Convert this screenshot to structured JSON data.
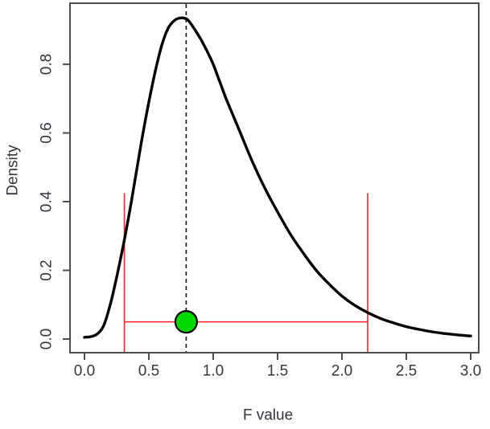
{
  "chart_data": {
    "type": "line",
    "title": "",
    "xlabel": "F value",
    "ylabel": "Density",
    "xlim": [
      0.0,
      3.0
    ],
    "ylim": [
      0.0,
      0.95
    ],
    "grid": false,
    "legend": null,
    "x_ticks": [
      0.0,
      0.5,
      1.0,
      1.5,
      2.0,
      2.5,
      3.0
    ],
    "y_ticks": [
      0.0,
      0.2,
      0.4,
      0.6,
      0.8
    ],
    "series": [
      {
        "name": "f-density-curve",
        "type": "line",
        "color": "#000000",
        "points": [
          [
            0.0,
            0.005
          ],
          [
            0.05,
            0.007
          ],
          [
            0.1,
            0.015
          ],
          [
            0.15,
            0.04
          ],
          [
            0.2,
            0.1
          ],
          [
            0.25,
            0.18
          ],
          [
            0.3,
            0.27
          ],
          [
            0.35,
            0.37
          ],
          [
            0.4,
            0.48
          ],
          [
            0.45,
            0.59
          ],
          [
            0.5,
            0.69
          ],
          [
            0.55,
            0.78
          ],
          [
            0.6,
            0.855
          ],
          [
            0.65,
            0.905
          ],
          [
            0.7,
            0.928
          ],
          [
            0.75,
            0.935
          ],
          [
            0.8,
            0.93
          ],
          [
            0.85,
            0.905
          ],
          [
            0.9,
            0.875
          ],
          [
            0.95,
            0.84
          ],
          [
            1.0,
            0.8
          ],
          [
            1.05,
            0.75
          ],
          [
            1.1,
            0.7
          ],
          [
            1.15,
            0.655
          ],
          [
            1.2,
            0.61
          ],
          [
            1.3,
            0.52
          ],
          [
            1.4,
            0.44
          ],
          [
            1.5,
            0.37
          ],
          [
            1.6,
            0.305
          ],
          [
            1.7,
            0.25
          ],
          [
            1.8,
            0.2
          ],
          [
            1.9,
            0.16
          ],
          [
            2.0,
            0.125
          ],
          [
            2.1,
            0.098
          ],
          [
            2.2,
            0.077
          ],
          [
            2.3,
            0.06
          ],
          [
            2.4,
            0.047
          ],
          [
            2.5,
            0.036
          ],
          [
            2.6,
            0.028
          ],
          [
            2.7,
            0.021
          ],
          [
            2.8,
            0.016
          ],
          [
            2.9,
            0.012
          ],
          [
            3.0,
            0.009
          ]
        ]
      }
    ],
    "annotations": {
      "observed_f_dashed_line": {
        "x": 0.79,
        "style": "dashed",
        "color": "#111111"
      },
      "observed_point": {
        "x": 0.79,
        "y": 0.05,
        "fill": "#00d800",
        "stroke": "#000000"
      },
      "interval": {
        "lower_x": 0.31,
        "upper_x": 2.2,
        "bar_y": 0.05,
        "whisker_top_y": 0.425,
        "whisker_bottom_y": 0.0,
        "color": "#ff2222"
      }
    },
    "colors": {
      "curve": "#000000",
      "axis": "#4d4d4d",
      "text": "#35353f",
      "interval": "#ff2222",
      "marker_fill": "#00d800",
      "background": "#ffffff"
    }
  }
}
